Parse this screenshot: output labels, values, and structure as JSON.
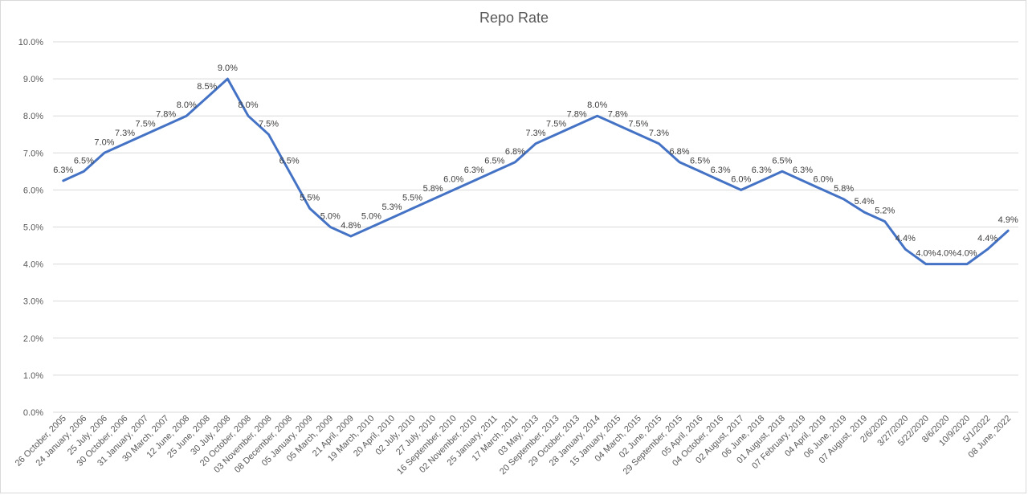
{
  "chart_data": {
    "type": "line",
    "title": "Repo Rate",
    "xlabel": "",
    "ylabel": "",
    "ylim": [
      0,
      10
    ],
    "y_ticks": [
      "0.0%",
      "1.0%",
      "2.0%",
      "3.0%",
      "4.0%",
      "5.0%",
      "6.0%",
      "7.0%",
      "8.0%",
      "9.0%",
      "10.0%"
    ],
    "grid": true,
    "legend": "none",
    "line_color": "#4472c4",
    "categories": [
      "26 October, 2005",
      "24 January, 2006",
      "25 July, 2006",
      "30 October, 2006",
      "31 January, 2007",
      "30 March, 2007",
      "12 June, 2008",
      "25 June, 2008",
      "30 July, 2008",
      "20 October, 2008",
      "03 November, 2008",
      "08 December, 2008",
      "05 January, 2009",
      "05 March, 2009",
      "21 April, 2009",
      "19 March, 2010",
      "20 April, 2010",
      "02 July, 2010",
      "27 July, 2010",
      "16 September, 2010",
      "02 November, 2010",
      "25 January, 2011",
      "17 March, 2011",
      "03 May, 2013",
      "20 September, 2013",
      "29 October, 2013",
      "28 January, 2014",
      "15 January, 2015",
      "04 March, 2015",
      "02 June, 2015",
      "29 September, 2015",
      "05 April, 2016",
      "04 October, 2016",
      "02 August, 2017",
      "06 June, 2018",
      "01 August, 2018",
      "07 February, 2019",
      "04 April, 2019",
      "06 June, 2019",
      "07 August, 2019",
      "2/6/2020",
      "3/27/2020",
      "5/22/2020",
      "8/6/2020",
      "10/9/2020",
      "5/1/2022",
      "08 June, 2022"
    ],
    "series": [
      {
        "values": [
          6.25,
          6.5,
          7.0,
          7.25,
          7.5,
          7.75,
          8.0,
          8.5,
          9.0,
          8.0,
          7.5,
          6.5,
          5.5,
          5.0,
          4.75,
          5.0,
          5.25,
          5.5,
          5.75,
          6.0,
          6.25,
          6.5,
          6.75,
          7.25,
          7.5,
          7.75,
          8.0,
          7.75,
          7.5,
          7.25,
          6.75,
          6.5,
          6.25,
          6.0,
          6.25,
          6.5,
          6.25,
          6.0,
          5.75,
          5.4,
          5.15,
          4.4,
          4.0,
          4.0,
          4.0,
          4.4,
          4.9
        ],
        "labels": [
          "6.3%",
          "6.5%",
          "7.0%",
          "7.3%",
          "7.5%",
          "7.8%",
          "8.0%",
          "8.5%",
          "9.0%",
          "8.0%",
          "7.5%",
          "6.5%",
          "5.5%",
          "5.0%",
          "4.8%",
          "5.0%",
          "5.3%",
          "5.5%",
          "5.8%",
          "6.0%",
          "6.3%",
          "6.5%",
          "6.8%",
          "7.3%",
          "7.5%",
          "7.8%",
          "8.0%",
          "7.8%",
          "7.5%",
          "7.3%",
          "6.8%",
          "6.5%",
          "6.3%",
          "6.0%",
          "6.3%",
          "6.5%",
          "6.3%",
          "6.0%",
          "5.8%",
          "5.4%",
          "5.2%",
          "4.4%",
          "4.0%",
          "4.0%",
          "4.0%",
          "4.4%",
          "4.9%"
        ]
      }
    ]
  }
}
